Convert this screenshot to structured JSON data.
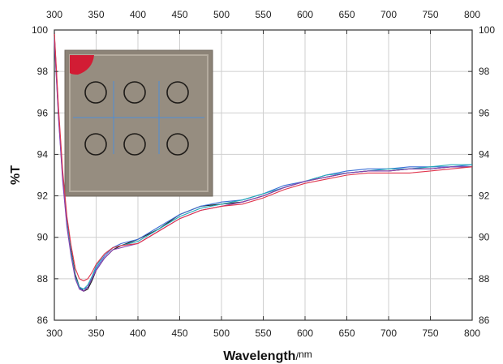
{
  "chart_data": {
    "type": "line",
    "xlabel": "Wavelength",
    "xunit": "nm",
    "ylabel": "%T",
    "xlim": [
      300,
      800
    ],
    "ylim": [
      86,
      100
    ],
    "xticks": [
      300,
      350,
      400,
      450,
      500,
      550,
      600,
      650,
      700,
      750,
      800
    ],
    "yticks": [
      86,
      88,
      90,
      92,
      94,
      96,
      98,
      100
    ],
    "grid": true,
    "mirror_axes": true,
    "inset_photo": true,
    "colors": [
      "#1a1a1a",
      "#3b6fd6",
      "#20a8b8",
      "#8a3fb0",
      "#e0354d"
    ],
    "series": [
      {
        "x": [
          300,
          305,
          310,
          315,
          320,
          325,
          330,
          335,
          340,
          345,
          350,
          360,
          370,
          380,
          400,
          425,
          450,
          475,
          500,
          525,
          550,
          575,
          600,
          625,
          650,
          675,
          700,
          725,
          750,
          775,
          800
        ],
        "y": [
          99.8,
          96,
          93,
          90.8,
          89.4,
          88.2,
          87.6,
          87.4,
          87.5,
          87.9,
          88.4,
          89,
          89.4,
          89.6,
          89.9,
          90.4,
          91.1,
          91.5,
          91.6,
          91.7,
          92,
          92.4,
          92.7,
          92.9,
          93.1,
          93.2,
          93.2,
          93.3,
          93.3,
          93.4,
          93.4
        ]
      },
      {
        "x": [
          300,
          305,
          310,
          315,
          320,
          325,
          330,
          335,
          340,
          345,
          350,
          360,
          370,
          380,
          400,
          425,
          450,
          475,
          500,
          525,
          550,
          575,
          600,
          625,
          650,
          675,
          700,
          725,
          750,
          775,
          800
        ],
        "y": [
          99.6,
          95.8,
          92.8,
          90.6,
          89.2,
          88.1,
          87.5,
          87.5,
          87.6,
          88,
          88.5,
          89.1,
          89.5,
          89.7,
          89.9,
          90.5,
          91.1,
          91.5,
          91.7,
          91.8,
          92.1,
          92.5,
          92.7,
          93,
          93.2,
          93.3,
          93.3,
          93.4,
          93.4,
          93.4,
          93.5
        ]
      },
      {
        "x": [
          300,
          305,
          310,
          315,
          320,
          325,
          330,
          335,
          340,
          345,
          350,
          360,
          370,
          380,
          400,
          425,
          450,
          475,
          500,
          525,
          550,
          575,
          600,
          625,
          650,
          675,
          700,
          725,
          750,
          775,
          800
        ],
        "y": [
          99.7,
          95.9,
          92.9,
          90.7,
          89.3,
          88.1,
          87.6,
          87.5,
          87.7,
          88.1,
          88.6,
          89.2,
          89.5,
          89.6,
          89.8,
          90.4,
          91,
          91.4,
          91.6,
          91.8,
          92.1,
          92.4,
          92.7,
          93,
          93.1,
          93.2,
          93.3,
          93.3,
          93.4,
          93.5,
          93.5
        ]
      },
      {
        "x": [
          300,
          305,
          310,
          315,
          320,
          325,
          330,
          335,
          340,
          345,
          350,
          360,
          370,
          380,
          400,
          425,
          450,
          475,
          500,
          525,
          550,
          575,
          600,
          625,
          650,
          675,
          700,
          725,
          750,
          775,
          800
        ],
        "y": [
          99.5,
          95.7,
          92.7,
          90.5,
          89.1,
          88,
          87.5,
          87.4,
          87.6,
          88,
          88.4,
          89,
          89.4,
          89.5,
          89.7,
          90.3,
          90.9,
          91.3,
          91.5,
          91.7,
          92,
          92.4,
          92.7,
          92.9,
          93.1,
          93.2,
          93.2,
          93.3,
          93.3,
          93.4,
          93.4
        ]
      },
      {
        "x": [
          300,
          305,
          310,
          315,
          320,
          325,
          330,
          335,
          340,
          345,
          350,
          360,
          370,
          380,
          400,
          425,
          450,
          475,
          500,
          525,
          550,
          575,
          600,
          625,
          650,
          675,
          700,
          725,
          750,
          775,
          800
        ],
        "y": [
          99.9,
          96.2,
          93.2,
          91,
          89.6,
          88.5,
          88,
          87.9,
          88,
          88.3,
          88.7,
          89.2,
          89.5,
          89.6,
          89.7,
          90.3,
          90.9,
          91.3,
          91.5,
          91.6,
          91.9,
          92.3,
          92.6,
          92.8,
          93,
          93.1,
          93.1,
          93.1,
          93.2,
          93.3,
          93.4
        ]
      }
    ]
  }
}
